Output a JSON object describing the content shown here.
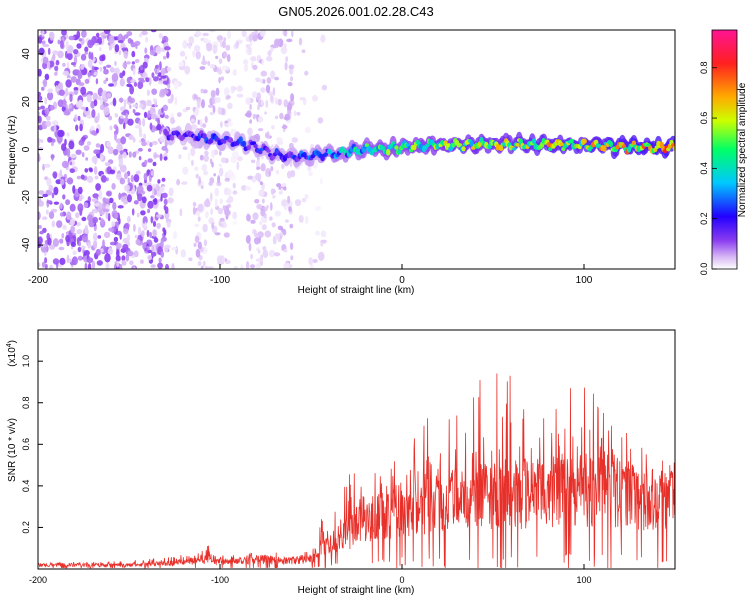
{
  "title": "GN05.2026.001.02.28.C43",
  "chart_data": [
    {
      "type": "heatmap",
      "xlabel": "Height of straight line (km)",
      "ylabel": "Frequency (Hz)",
      "xlim": [
        -200,
        150
      ],
      "ylim": [
        -50,
        50
      ],
      "xticks": [
        -200,
        -100,
        0,
        100
      ],
      "yticks": [
        -40,
        -20,
        0,
        20,
        40
      ],
      "colorbar": {
        "label": "Normalized spectral amplitude",
        "range": [
          0,
          0.95
        ],
        "ticks": [
          "0.0",
          "0.2",
          "0.4",
          "0.6",
          "0.8"
        ],
        "colormap": [
          "#ffffff",
          "#d8b8f5",
          "#8a3cf0",
          "#2200ff",
          "#00c8ff",
          "#00ff66",
          "#ccff00",
          "#ffaa00",
          "#ff2020",
          "#ff1493"
        ]
      },
      "ridge": {
        "x": [
          -130,
          -120,
          -110,
          -100,
          -90,
          -80,
          -70,
          -60,
          -50,
          -40,
          -30,
          -20,
          -10,
          0,
          20,
          40,
          60,
          80,
          100,
          120,
          150
        ],
        "freq": [
          6,
          6,
          5,
          4,
          3,
          1,
          -2,
          -3,
          -3,
          -2,
          -1,
          0,
          0,
          1,
          2,
          2,
          2,
          2,
          2,
          1,
          1
        ],
        "amplitude": [
          0.3,
          0.3,
          0.35,
          0.35,
          0.35,
          0.35,
          0.35,
          0.35,
          0.4,
          0.45,
          0.5,
          0.55,
          0.6,
          0.6,
          0.65,
          0.7,
          0.7,
          0.75,
          0.75,
          0.8,
          0.85
        ]
      }
    },
    {
      "type": "line",
      "xlabel": "Height of straight line (km)",
      "ylabel": "SNR (10 * v/v)",
      "multiplier": "(x10",
      "multiplier_exp": "4",
      "multiplier_close": ")",
      "xlim": [
        -200,
        150
      ],
      "ylim": [
        0,
        1.15
      ],
      "xticks": [
        -200,
        -100,
        0,
        100
      ],
      "yticks": [
        "0.2",
        "0.4",
        "0.6",
        "0.8",
        "1.0"
      ],
      "color": "#e8302a",
      "envelope": {
        "x": [
          -200,
          -150,
          -125,
          -115,
          -110,
          -100,
          -80,
          -65,
          -50,
          -45,
          -40,
          -30,
          -25,
          -20,
          -10,
          0,
          15,
          20,
          35,
          50,
          55,
          65,
          75,
          90,
          100,
          110,
          120,
          135,
          150
        ],
        "baseline": [
          0.02,
          0.02,
          0.03,
          0.04,
          0.05,
          0.04,
          0.05,
          0.04,
          0.05,
          0.1,
          0.12,
          0.18,
          0.22,
          0.25,
          0.28,
          0.3,
          0.32,
          0.35,
          0.35,
          0.38,
          0.38,
          0.38,
          0.38,
          0.4,
          0.4,
          0.4,
          0.38,
          0.36,
          0.38
        ],
        "peak": [
          0.03,
          0.04,
          0.06,
          0.09,
          0.14,
          0.07,
          0.11,
          0.07,
          0.09,
          0.28,
          0.24,
          0.45,
          0.58,
          0.48,
          0.52,
          0.62,
          0.75,
          0.8,
          0.92,
          0.9,
          1.0,
          0.85,
          0.8,
          0.88,
          0.95,
          0.78,
          0.68,
          0.58,
          0.55
        ]
      }
    }
  ]
}
